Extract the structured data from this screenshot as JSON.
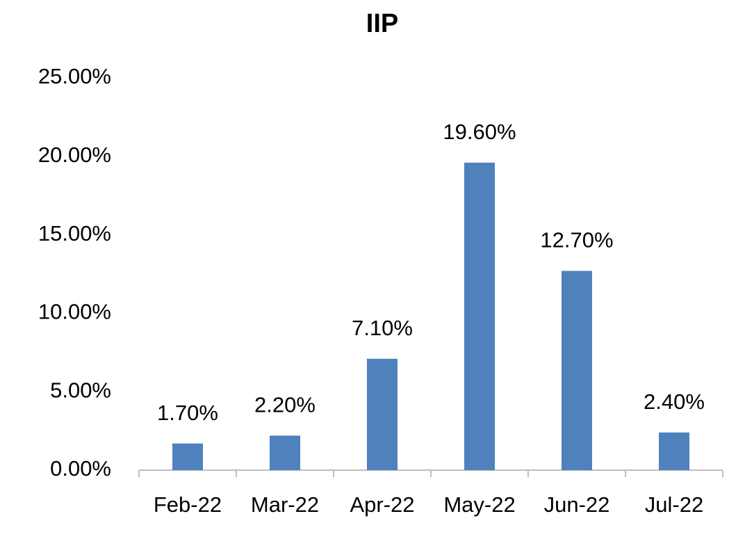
{
  "chart_data": {
    "type": "bar",
    "title": "IIP",
    "categories": [
      "Feb-22",
      "Mar-22",
      "Apr-22",
      "May-22",
      "Jun-22",
      "Jul-22"
    ],
    "values": [
      1.7,
      2.2,
      7.1,
      19.6,
      12.7,
      2.4
    ],
    "value_labels": [
      "1.70%",
      "2.20%",
      "7.10%",
      "19.60%",
      "12.70%",
      "2.40%"
    ],
    "color": "#4f81bd",
    "ylim": [
      0,
      25
    ],
    "yticks": [
      {
        "value": 0,
        "label": "0.00%"
      },
      {
        "value": 5,
        "label": "5.00%"
      },
      {
        "value": 10,
        "label": "10.00%"
      },
      {
        "value": 15,
        "label": "15.00%"
      },
      {
        "value": 20,
        "label": "20.00%"
      },
      {
        "value": 25,
        "label": "25.00%"
      }
    ],
    "grid": false
  }
}
